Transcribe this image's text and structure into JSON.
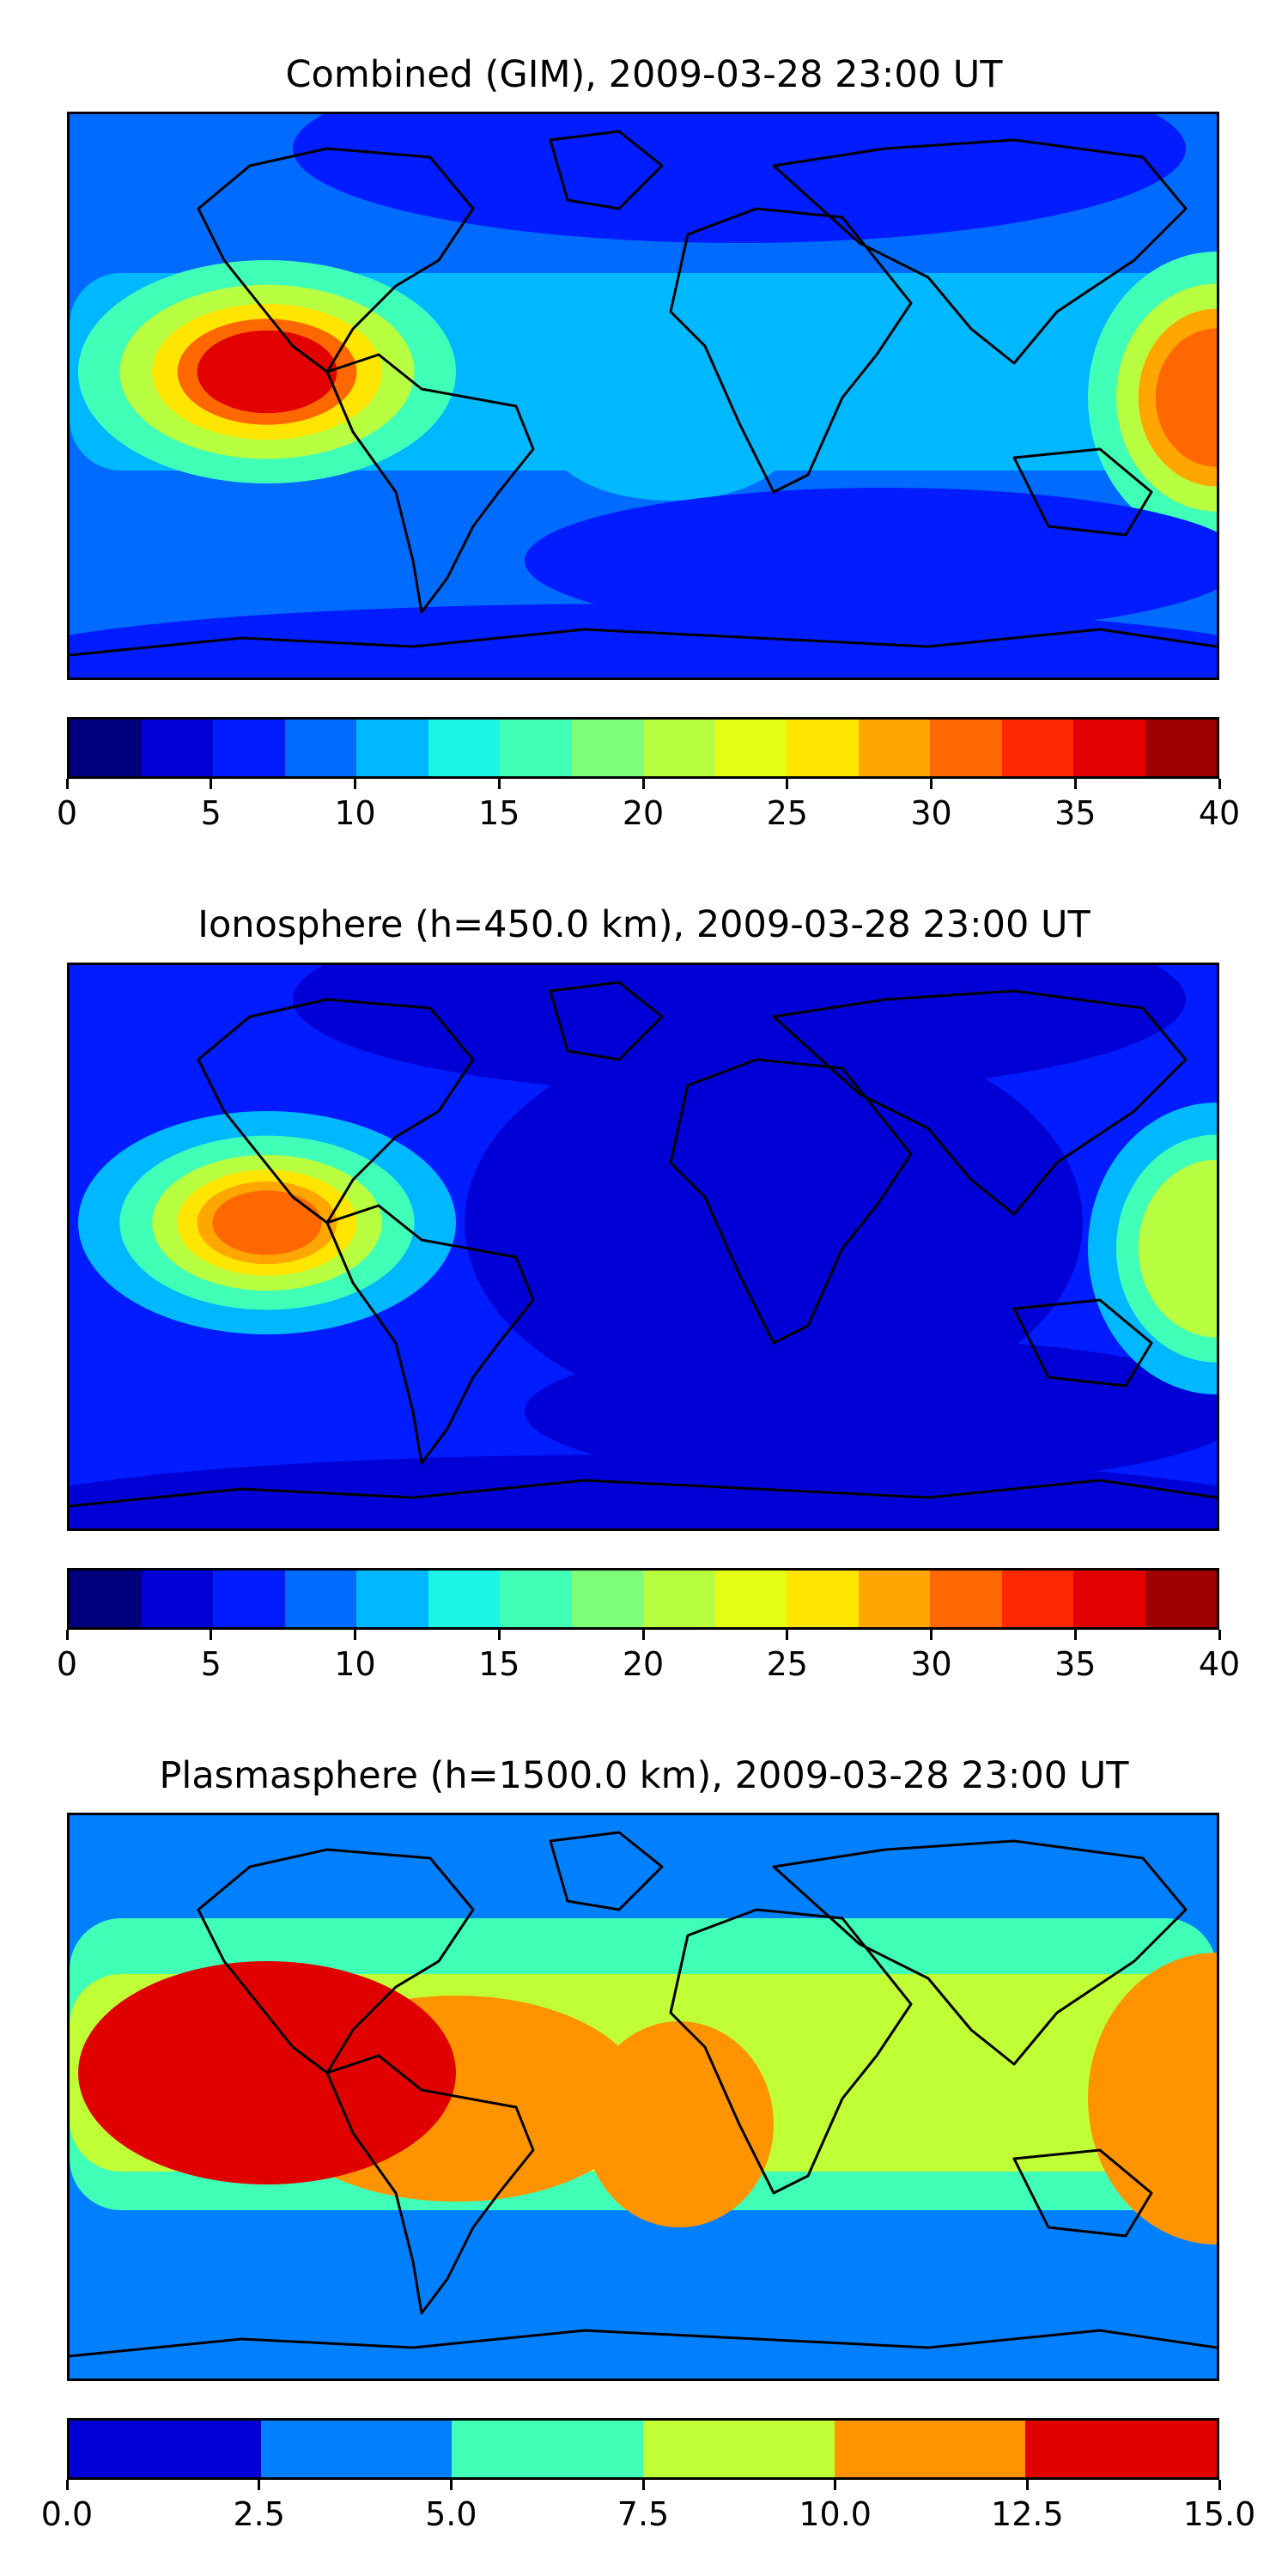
{
  "chart_data": [
    {
      "type": "heatmap",
      "title": "Combined (GIM), 2009-03-28 23:00 UT",
      "xlabel": "",
      "ylabel": "",
      "colorbar": {
        "min": 0,
        "max": 40,
        "step": 2.5,
        "ticks": [
          0,
          5,
          10,
          15,
          20,
          25,
          30,
          35,
          40
        ],
        "tick_labels": [
          "0",
          "5",
          "10",
          "15",
          "20",
          "25",
          "30",
          "35",
          "40"
        ],
        "colors": [
          "#00007f",
          "#0000d6",
          "#001cff",
          "#006cff",
          "#00b8ff",
          "#1cf4e4",
          "#40ffb7",
          "#7dff7a",
          "#b7ff40",
          "#e4ff13",
          "#ffe500",
          "#ffa600",
          "#ff6800",
          "#ff2900",
          "#e30000",
          "#9f0000"
        ]
      },
      "features": [
        {
          "name": "background",
          "level": 7.5
        },
        {
          "name": "equatorial-band",
          "level": 10
        },
        {
          "name": "south-atlantic-arm",
          "level": 10
        },
        {
          "name": "pacific-crest",
          "level": 15
        },
        {
          "name": "pacific-crest",
          "level": 20
        },
        {
          "name": "pacific-crest",
          "level": 25
        },
        {
          "name": "pacific-crest",
          "level": 30
        },
        {
          "name": "pacific-crest",
          "level": 35
        },
        {
          "name": "east-edge-crest",
          "level": 15
        },
        {
          "name": "east-edge-crest",
          "level": 20
        },
        {
          "name": "east-edge-crest",
          "level": 27.5
        },
        {
          "name": "east-edge-crest",
          "level": 30
        },
        {
          "name": "north-low",
          "level": 5
        },
        {
          "name": "south-low",
          "level": 5
        },
        {
          "name": "south-pole-low",
          "level": 5
        }
      ]
    },
    {
      "type": "heatmap",
      "title": "Ionosphere  (h=450.0 km), 2009-03-28 23:00 UT",
      "xlabel": "",
      "ylabel": "",
      "colorbar": {
        "min": 0,
        "max": 40,
        "step": 2.5,
        "ticks": [
          0,
          5,
          10,
          15,
          20,
          25,
          30,
          35,
          40
        ],
        "tick_labels": [
          "0",
          "5",
          "10",
          "15",
          "20",
          "25",
          "30",
          "35",
          "40"
        ],
        "colors": [
          "#00007f",
          "#0000d6",
          "#001cff",
          "#006cff",
          "#00b8ff",
          "#1cf4e4",
          "#40ffb7",
          "#7dff7a",
          "#b7ff40",
          "#e4ff13",
          "#ffe500",
          "#ffa600",
          "#ff6800",
          "#ff2900",
          "#e30000",
          "#9f0000"
        ]
      },
      "features": [
        {
          "name": "background",
          "level": 5
        },
        {
          "name": "africa-low",
          "level": 2.5
        },
        {
          "name": "north-low",
          "level": 2.5
        },
        {
          "name": "south-low",
          "level": 2.5
        },
        {
          "name": "south-pole-low",
          "level": 2.5
        },
        {
          "name": "pacific-crest",
          "level": 10
        },
        {
          "name": "pacific-crest",
          "level": 15
        },
        {
          "name": "pacific-crest",
          "level": 20
        },
        {
          "name": "pacific-crest",
          "level": 25
        },
        {
          "name": "pacific-crest",
          "level": 27.5
        },
        {
          "name": "pacific-crest",
          "level": 30
        },
        {
          "name": "east-edge-crest",
          "level": 10
        },
        {
          "name": "east-edge-crest",
          "level": 15
        },
        {
          "name": "east-edge-crest",
          "level": 20
        }
      ]
    },
    {
      "type": "heatmap",
      "title": "Plasmasphere (h=1500.0 km), 2009-03-28 23:00 UT",
      "xlabel": "",
      "ylabel": "",
      "colorbar": {
        "min": 0,
        "max": 15,
        "step": 2.5,
        "ticks": [
          0,
          2.5,
          5,
          7.5,
          10,
          12.5,
          15
        ],
        "tick_labels": [
          "0.0",
          "2.5",
          "5.0",
          "7.5",
          "10.0",
          "12.5",
          "15.0"
        ],
        "colors": [
          "#0000d6",
          "#0080ff",
          "#40ffb7",
          "#c0ff36",
          "#ff9400",
          "#e00000"
        ]
      },
      "features": [
        {
          "name": "background",
          "level": 2.5
        },
        {
          "name": "mid-band",
          "level": 5
        },
        {
          "name": "equatorial-band",
          "level": 7.5
        },
        {
          "name": "south-america-crest",
          "level": 10
        },
        {
          "name": "pacific-crest",
          "level": 12.5
        },
        {
          "name": "africa-arm",
          "level": 10
        },
        {
          "name": "east-edge-crest",
          "level": 10
        }
      ]
    }
  ]
}
